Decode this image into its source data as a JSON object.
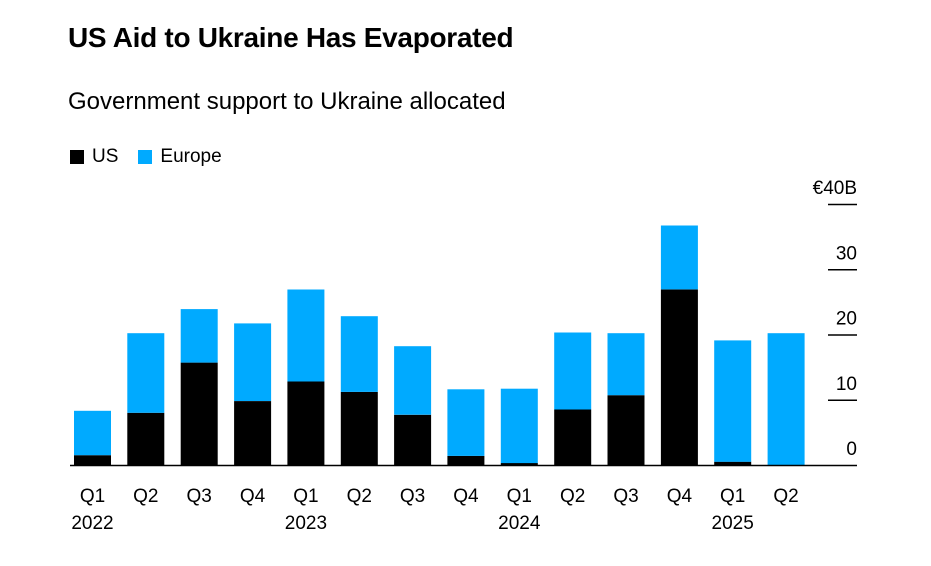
{
  "chart_data": {
    "type": "bar",
    "stacked": true,
    "title": "US Aid to Ukraine Has Evaporated",
    "subtitle": "Government support to Ukraine allocated",
    "categories": [
      "Q1",
      "Q2",
      "Q3",
      "Q4",
      "Q1",
      "Q2",
      "Q3",
      "Q4",
      "Q1",
      "Q2",
      "Q3",
      "Q4",
      "Q1",
      "Q2"
    ],
    "years": [
      {
        "label": "2022",
        "index": 0
      },
      {
        "label": "2023",
        "index": 4
      },
      {
        "label": "2024",
        "index": 8
      },
      {
        "label": "2025",
        "index": 12
      }
    ],
    "series": [
      {
        "name": "US",
        "color": "#000000",
        "values": [
          1.5,
          8,
          15.7,
          9.8,
          12.8,
          11.2,
          7.7,
          1.4,
          0.3,
          8.5,
          10.7,
          26.9,
          0.5,
          0
        ]
      },
      {
        "name": "Europe",
        "color": "#00aaff",
        "values": [
          6.8,
          12.2,
          8.2,
          11.9,
          14.1,
          11.6,
          10.5,
          10.2,
          11.4,
          11.8,
          9.5,
          9.8,
          18.6,
          20.2
        ]
      }
    ],
    "ylim": [
      0,
      40
    ],
    "yticks": [
      0,
      10,
      20,
      30,
      40
    ],
    "ytick_labels": [
      "0",
      "10",
      "20",
      "30",
      "€40B"
    ],
    "legend_position": "top-left"
  }
}
